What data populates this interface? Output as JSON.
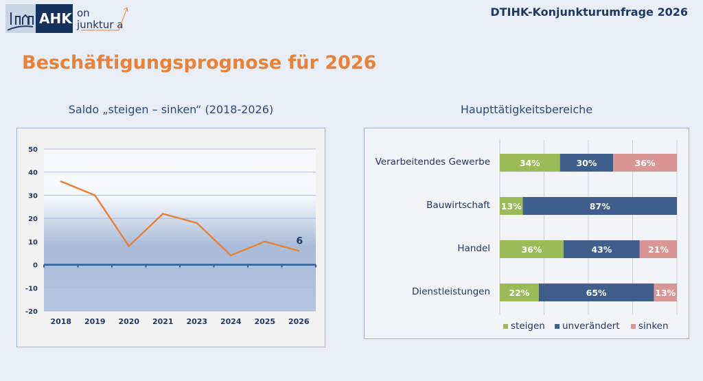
{
  "header": {
    "logo_text": "AHK on junktura",
    "title": "DTIHK-Konjunkturumfrage 2026"
  },
  "page_title": "Beschäftigungsprognose für 2026",
  "colors": {
    "accent": "#e8823a",
    "steigen": "#9bbb59",
    "unveraendert": "#3f5e8c",
    "sinken": "#d99694",
    "line": "#e8823a"
  },
  "chart_data": [
    {
      "type": "line",
      "title": "Saldo „steigen – sinken“ (2018-2026)",
      "categories": [
        "2018",
        "2019",
        "2020",
        "2021",
        "2023",
        "2024",
        "2025",
        "2026"
      ],
      "values": [
        36,
        30,
        8,
        22,
        18,
        4,
        10,
        6
      ],
      "ylim": [
        -20,
        50
      ],
      "yticks": [
        50,
        40,
        30,
        20,
        10,
        0,
        -10,
        -20
      ],
      "data_labels": {
        "2026": "6"
      },
      "grid": true
    },
    {
      "type": "bar",
      "stacked": true,
      "orientation": "horizontal",
      "title": "Haupttätigkeitsbereiche",
      "categories": [
        "Verarbeitendes Gewerbe",
        "Bauwirtschaft",
        "Handel",
        "Dienstleistungen"
      ],
      "series": [
        {
          "name": "steigen",
          "values": [
            34,
            13,
            36,
            22
          ]
        },
        {
          "name": "unverändert",
          "values": [
            30,
            87,
            43,
            65
          ]
        },
        {
          "name": "sinken",
          "values": [
            36,
            0,
            21,
            13
          ]
        }
      ],
      "unit": "%",
      "legend": "bottom"
    }
  ]
}
